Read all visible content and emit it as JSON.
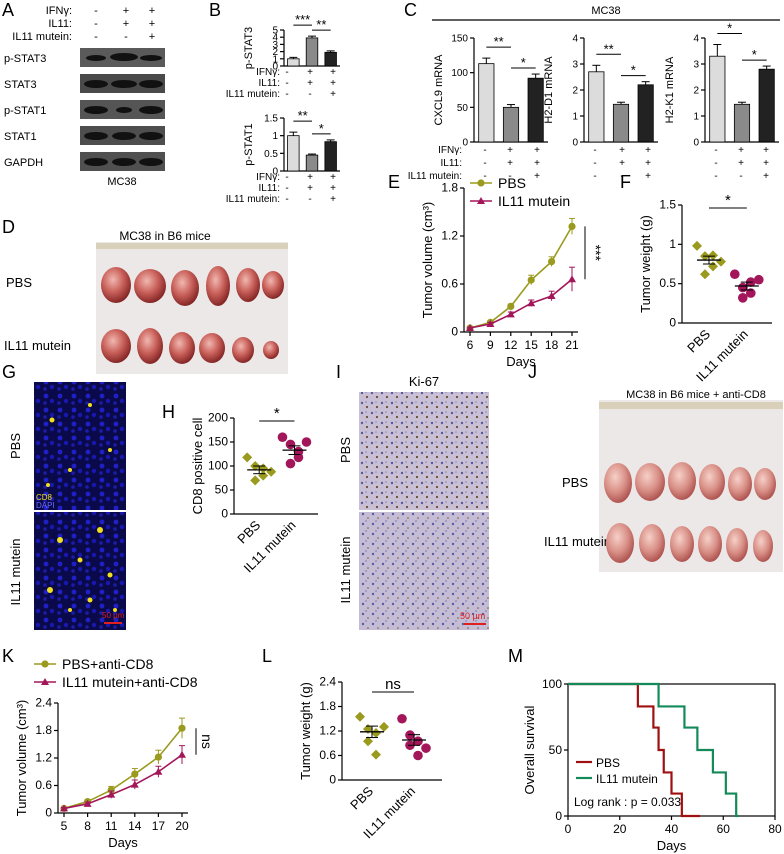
{
  "panel_labels": [
    "A",
    "B",
    "C",
    "D",
    "E",
    "F",
    "G",
    "H",
    "I",
    "J",
    "K",
    "L",
    "M"
  ],
  "panelA": {
    "conditions": [
      {
        "label": "IFNγ:",
        "signs": [
          "-",
          "+",
          "+"
        ]
      },
      {
        "label": "IL11:",
        "signs": [
          "-",
          "+",
          "+"
        ]
      },
      {
        "label": "IL11 mutein:",
        "signs": [
          "-",
          "-",
          "+"
        ]
      }
    ],
    "bands": [
      "p-STAT3",
      "STAT3",
      "p-STAT1",
      "STAT1",
      "GAPDH"
    ],
    "cell_line": "MC38"
  },
  "panelB_conditions": [
    {
      "label": "IFNγ:",
      "signs": [
        "-",
        "+",
        "+"
      ]
    },
    {
      "label": "IL11:",
      "signs": [
        "-",
        "+",
        "+"
      ]
    },
    {
      "label": "IL11 mutein:",
      "signs": [
        "-",
        "-",
        "+"
      ]
    }
  ],
  "panelC": {
    "header": "MC38",
    "conditions": [
      {
        "label": "IFNγ:",
        "signs": [
          "-",
          "+",
          "+"
        ]
      },
      {
        "label": "IL11:",
        "signs": [
          "-",
          "+",
          "+"
        ]
      },
      {
        "label": "IL11 mutein:",
        "signs": [
          "-",
          "-",
          "+"
        ]
      }
    ]
  },
  "panelD": {
    "title": "MC38 in B6 mice",
    "rows": [
      "PBS",
      "IL11 mutein"
    ]
  },
  "panelG": {
    "rows": [
      "PBS",
      "IL11 mutein"
    ],
    "legend": [
      "CD8",
      "DAPI"
    ],
    "scale": "50 μm"
  },
  "panelI": {
    "title": "Ki-67",
    "rows": [
      "PBS",
      "IL11 mutein"
    ],
    "scale": "50 μm"
  },
  "panelJ": {
    "title": "MC38 in B6 mice + anti-CD8",
    "rows": [
      "PBS",
      "IL11 mutein"
    ]
  },
  "colors": {
    "pbs": "#9a9a1e",
    "mutein": "#a3165a",
    "pbs_km": "#a01010",
    "mutein_km": "#148a5a",
    "bar_light": "#dcdcdc",
    "bar_mid": "#8a8a8a",
    "bar_dark": "#222222"
  },
  "chart_data": [
    {
      "id": "B_top",
      "type": "bar",
      "ylabel": "p-STAT3",
      "ylim": [
        0,
        5
      ],
      "yticks": [
        0,
        1,
        2,
        3,
        4,
        5
      ],
      "values": [
        1.0,
        3.9,
        1.9
      ],
      "errors": [
        0.2,
        0.25,
        0.2
      ],
      "sig": [
        {
          "pair": [
            0,
            1
          ],
          "label": "***"
        },
        {
          "pair": [
            1,
            2
          ],
          "label": "**"
        }
      ]
    },
    {
      "id": "B_bottom",
      "type": "bar",
      "ylabel": "p-STAT1",
      "ylim": [
        0,
        1.5
      ],
      "yticks": [
        0,
        0.5,
        1.0,
        1.5
      ],
      "values": [
        1.0,
        0.45,
        0.83
      ],
      "errors": [
        0.1,
        0.03,
        0.05
      ],
      "sig": [
        {
          "pair": [
            0,
            1
          ],
          "label": "**"
        },
        {
          "pair": [
            1,
            2
          ],
          "label": "*"
        }
      ]
    },
    {
      "id": "C1",
      "type": "bar",
      "ylabel": "CXCL9 mRNA",
      "ylim": [
        0,
        150
      ],
      "yticks": [
        0,
        50,
        100,
        150
      ],
      "values": [
        113,
        50,
        92
      ],
      "errors": [
        8,
        4,
        6
      ],
      "sig": [
        {
          "pair": [
            0,
            1
          ],
          "label": "**"
        },
        {
          "pair": [
            1,
            2
          ],
          "label": "*"
        }
      ]
    },
    {
      "id": "C2",
      "type": "bar",
      "ylabel": "H2-D1 mRNA",
      "ylim": [
        0,
        4
      ],
      "yticks": [
        0,
        1,
        2,
        3,
        4
      ],
      "values": [
        2.7,
        1.45,
        2.2
      ],
      "errors": [
        0.25,
        0.08,
        0.12
      ],
      "sig": [
        {
          "pair": [
            0,
            1
          ],
          "label": "**"
        },
        {
          "pair": [
            1,
            2
          ],
          "label": "*"
        }
      ]
    },
    {
      "id": "C3",
      "type": "bar",
      "ylabel": "H2-K1 mRNA",
      "ylim": [
        0,
        4
      ],
      "yticks": [
        0,
        1,
        2,
        3,
        4
      ],
      "values": [
        3.3,
        1.45,
        2.8
      ],
      "errors": [
        0.45,
        0.08,
        0.12
      ],
      "sig": [
        {
          "pair": [
            0,
            1
          ],
          "label": "*"
        },
        {
          "pair": [
            1,
            2
          ],
          "label": "*"
        }
      ]
    },
    {
      "id": "E",
      "type": "line",
      "xlabel": "Days",
      "ylabel": "Tumor volume (cm³)",
      "x": [
        6,
        9,
        12,
        15,
        18,
        21
      ],
      "ylim": [
        0,
        1.8
      ],
      "yticks": [
        0,
        0.6,
        1.2,
        1.8
      ],
      "series": [
        {
          "name": "PBS",
          "values": [
            0.05,
            0.12,
            0.32,
            0.65,
            0.88,
            1.32
          ],
          "errors": [
            0.01,
            0.02,
            0.03,
            0.06,
            0.06,
            0.1
          ]
        },
        {
          "name": "IL11 mutein",
          "values": [
            0.05,
            0.1,
            0.22,
            0.36,
            0.45,
            0.66
          ],
          "errors": [
            0.01,
            0.02,
            0.03,
            0.04,
            0.06,
            0.15
          ]
        }
      ],
      "sig": "***"
    },
    {
      "id": "F",
      "type": "scatter",
      "ylabel": "Tumor weight (g)",
      "categories": [
        "PBS",
        "IL11 mutein"
      ],
      "ylim": [
        0,
        1.5
      ],
      "yticks": [
        0,
        0.5,
        1.0,
        1.5
      ],
      "points": [
        [
          0.98,
          0.85,
          0.72,
          0.62,
          0.86,
          0.78
        ],
        [
          0.62,
          0.45,
          0.52,
          0.32,
          0.38,
          0.55
        ]
      ],
      "means": [
        0.8,
        0.47
      ],
      "sems": [
        0.05,
        0.05
      ],
      "sig": "*"
    },
    {
      "id": "H",
      "type": "scatter",
      "ylabel": "CD8 positive cell",
      "categories": [
        "PBS",
        "IL11 mutein"
      ],
      "ylim": [
        0,
        200
      ],
      "yticks": [
        0,
        50,
        100,
        150,
        200
      ],
      "points": [
        [
          118,
          100,
          80,
          70,
          95,
          88
        ],
        [
          160,
          145,
          118,
          105,
          130,
          150
        ]
      ],
      "means": [
        92,
        133
      ],
      "sems": [
        8,
        9
      ],
      "sig": "*"
    },
    {
      "id": "K",
      "type": "line",
      "xlabel": "Days",
      "ylabel": "Tumor volume (cm³)",
      "x": [
        5,
        8,
        11,
        14,
        17,
        20
      ],
      "ylim": [
        0,
        2.4
      ],
      "yticks": [
        0,
        0.6,
        1.2,
        1.8,
        2.4
      ],
      "series": [
        {
          "name": "PBS+anti-CD8",
          "values": [
            0.1,
            0.25,
            0.5,
            0.85,
            1.22,
            1.85
          ],
          "errors": [
            0.02,
            0.04,
            0.08,
            0.12,
            0.15,
            0.22
          ]
        },
        {
          "name": "IL11 mutein+anti-CD8",
          "values": [
            0.1,
            0.2,
            0.4,
            0.62,
            0.9,
            1.27
          ],
          "errors": [
            0.02,
            0.04,
            0.08,
            0.1,
            0.12,
            0.2
          ]
        }
      ],
      "sig": "ns"
    },
    {
      "id": "L",
      "type": "scatter",
      "ylabel": "Tumor weight (g)",
      "categories": [
        "PBS",
        "IL11 mutein"
      ],
      "ylim": [
        0,
        2.4
      ],
      "yticks": [
        0,
        0.6,
        1.2,
        1.8,
        2.4
      ],
      "points": [
        [
          1.55,
          1.25,
          1.15,
          0.95,
          0.62,
          1.3
        ],
        [
          1.5,
          1.1,
          0.95,
          0.85,
          0.6,
          0.78
        ]
      ],
      "means": [
        1.18,
        0.98
      ],
      "sems": [
        0.14,
        0.13
      ],
      "sig": "ns"
    },
    {
      "id": "M",
      "type": "line",
      "xlabel": "Days",
      "ylabel": "Overall survival",
      "xlim": [
        0,
        80
      ],
      "xticks": [
        0,
        20,
        40,
        60,
        80
      ],
      "ylim": [
        0,
        100
      ],
      "yticks": [
        0,
        50,
        100
      ],
      "series": [
        {
          "name": "PBS",
          "steps": [
            [
              0,
              100
            ],
            [
              27,
              100
            ],
            [
              27,
              83
            ],
            [
              33,
              83
            ],
            [
              33,
              67
            ],
            [
              35,
              67
            ],
            [
              35,
              50
            ],
            [
              37,
              50
            ],
            [
              37,
              33
            ],
            [
              40,
              33
            ],
            [
              40,
              17
            ],
            [
              44,
              17
            ],
            [
              44,
              0
            ],
            [
              51,
              0
            ]
          ]
        },
        {
          "name": "IL11 mutein",
          "steps": [
            [
              0,
              100
            ],
            [
              35,
              100
            ],
            [
              35,
              83
            ],
            [
              45,
              83
            ],
            [
              45,
              67
            ],
            [
              50,
              67
            ],
            [
              50,
              50
            ],
            [
              56,
              50
            ],
            [
              56,
              33
            ],
            [
              61,
              33
            ],
            [
              61,
              17
            ],
            [
              65,
              17
            ],
            [
              65,
              0
            ],
            [
              66,
              0
            ]
          ]
        }
      ],
      "annotation": "Log rank : p = 0.033"
    }
  ]
}
